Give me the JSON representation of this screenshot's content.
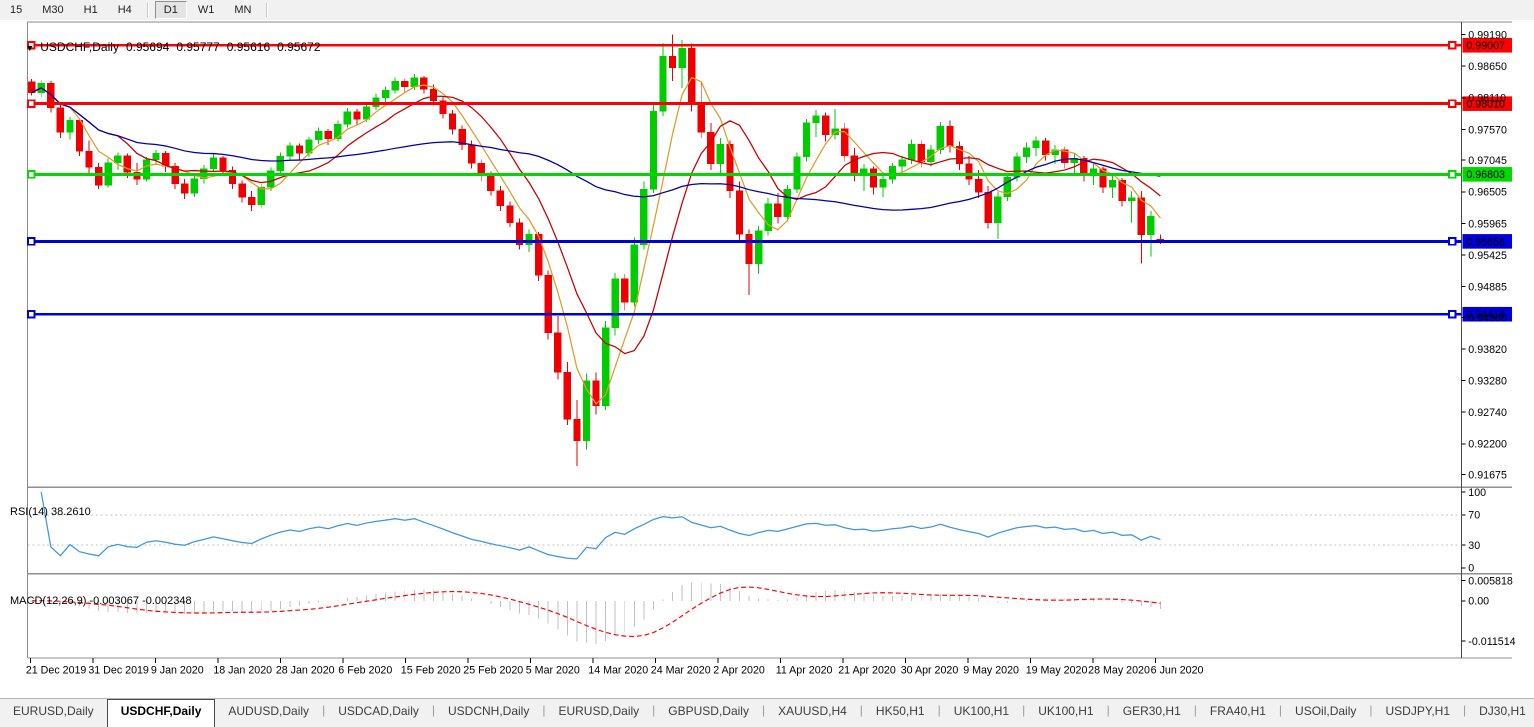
{
  "toolbar": {
    "timeframes": [
      "15",
      "M30",
      "H1",
      "H4",
      "D1",
      "W1",
      "MN"
    ],
    "active": "D1"
  },
  "chart_header": {
    "symbol": "USDCHF,Daily",
    "open": "0.95694",
    "high": "0.95777",
    "low": "0.95616",
    "close": "0.95672"
  },
  "indicator_labels": {
    "rsi": "RSI(14) 38.2610",
    "macd": "MACD(12,26,9) -0.003067 -0.002348"
  },
  "chart_data": {
    "type": "candlestick",
    "symbol": "USDCHF",
    "timeframe": "Daily",
    "current_ohlc": {
      "open": 0.95694,
      "high": 0.95777,
      "low": 0.95616,
      "close": 0.95672
    },
    "y_axis_range": [
      0.91675,
      0.9919
    ],
    "grid": false,
    "x_labels": [
      "21 Dec 2019",
      "31 Dec 2019",
      "9 Jan 2020",
      "18 Jan 2020",
      "28 Jan 2020",
      "6 Feb 2020",
      "15 Feb 2020",
      "25 Feb 2020",
      "5 Mar 2020",
      "14 Mar 2020",
      "24 Mar 2020",
      "2 Apr 2020",
      "11 Apr 2020",
      "21 Apr 2020",
      "30 Apr 2020",
      "9 May 2020",
      "19 May 2020",
      "28 May 2020",
      "6 Jun 2020"
    ],
    "y_ticks": [
      "0.99190",
      "0.98650",
      "0.98110",
      "0.97570",
      "0.97045",
      "0.96505",
      "0.95965",
      "0.95425",
      "0.94885",
      "0.94360",
      "0.93820",
      "0.93280",
      "0.92740",
      "0.92200",
      "0.91675"
    ],
    "h_lines": [
      {
        "value": 0.99007,
        "label": "0.99007",
        "color": "#ff0000"
      },
      {
        "value": 0.9801,
        "label": "0.98010",
        "color": "#ff0000"
      },
      {
        "value": 0.96803,
        "label": "0.96803",
        "color": "#00d800"
      },
      {
        "value": 0.95658,
        "label": "0.95658",
        "color": "#0000dc"
      },
      {
        "value": 0.94414,
        "label": "0.94414",
        "color": "#0000dc"
      }
    ],
    "moving_averages": [
      {
        "period": 5,
        "color": "#e29b2c"
      },
      {
        "period": 10,
        "color": "#c80000"
      },
      {
        "period": 45,
        "color": "#0000aa"
      }
    ],
    "rsi": {
      "period": 14,
      "current": 38.261,
      "levels": [
        70,
        30
      ],
      "color": "#3e96e0",
      "scale_ticks": [
        {
          "v": 100,
          "t": "100"
        },
        {
          "v": 70,
          "t": "70"
        },
        {
          "v": 30,
          "t": "30"
        },
        {
          "v": 0,
          "t": "0"
        }
      ]
    },
    "macd": {
      "fast": 12,
      "slow": 26,
      "signal": 9,
      "current_macd": -0.003067,
      "current_signal": -0.002348,
      "hist_color": "#c2c2c2",
      "signal_color": "#ff0000",
      "scale_ticks": [
        {
          "v": 0.005818,
          "t": "0.005818"
        },
        {
          "v": 0,
          "t": "0.00"
        },
        {
          "v": -0.011514,
          "t": "-0.011514"
        }
      ]
    },
    "colors": {
      "bull": "#00cc00",
      "bear": "#ee0000",
      "background": "#ffffff"
    },
    "candles": [
      [
        0.9838,
        0.9843,
        0.9815,
        0.982
      ],
      [
        0.982,
        0.9841,
        0.9812,
        0.9836
      ],
      [
        0.9836,
        0.984,
        0.9786,
        0.9794
      ],
      [
        0.9794,
        0.98,
        0.9742,
        0.9752
      ],
      [
        0.9752,
        0.9778,
        0.974,
        0.9773
      ],
      [
        0.9773,
        0.9776,
        0.9712,
        0.972
      ],
      [
        0.972,
        0.9738,
        0.968,
        0.9692
      ],
      [
        0.9692,
        0.97,
        0.9655,
        0.9662
      ],
      [
        0.9662,
        0.9707,
        0.9658,
        0.97
      ],
      [
        0.97,
        0.9718,
        0.9688,
        0.9712
      ],
      [
        0.9712,
        0.9716,
        0.9674,
        0.9684
      ],
      [
        0.9684,
        0.97,
        0.9662,
        0.9672
      ],
      [
        0.9672,
        0.971,
        0.9668,
        0.9705
      ],
      [
        0.9705,
        0.9722,
        0.9696,
        0.9716
      ],
      [
        0.9716,
        0.972,
        0.9684,
        0.9694
      ],
      [
        0.9694,
        0.97,
        0.9655,
        0.9664
      ],
      [
        0.9664,
        0.9672,
        0.9638,
        0.9648
      ],
      [
        0.9648,
        0.968,
        0.9642,
        0.9673
      ],
      [
        0.9673,
        0.9696,
        0.9665,
        0.969
      ],
      [
        0.969,
        0.9715,
        0.9684,
        0.9709
      ],
      [
        0.9709,
        0.9712,
        0.9678,
        0.9687
      ],
      [
        0.9687,
        0.9694,
        0.9655,
        0.9664
      ],
      [
        0.9664,
        0.967,
        0.9632,
        0.9641
      ],
      [
        0.9641,
        0.9652,
        0.9618,
        0.9628
      ],
      [
        0.9628,
        0.9664,
        0.9622,
        0.9658
      ],
      [
        0.9658,
        0.9692,
        0.9652,
        0.9686
      ],
      [
        0.9686,
        0.9718,
        0.968,
        0.9711
      ],
      [
        0.9711,
        0.9735,
        0.9704,
        0.9729
      ],
      [
        0.9729,
        0.9733,
        0.9706,
        0.9716
      ],
      [
        0.9716,
        0.9744,
        0.971,
        0.9739
      ],
      [
        0.9739,
        0.976,
        0.9732,
        0.9754
      ],
      [
        0.9754,
        0.9758,
        0.973,
        0.9741
      ],
      [
        0.9741,
        0.9772,
        0.9736,
        0.9766
      ],
      [
        0.9766,
        0.9794,
        0.976,
        0.9787
      ],
      [
        0.9787,
        0.9792,
        0.9764,
        0.9774
      ],
      [
        0.9774,
        0.9802,
        0.977,
        0.9796
      ],
      [
        0.9796,
        0.9818,
        0.979,
        0.9811
      ],
      [
        0.9811,
        0.983,
        0.9804,
        0.9824
      ],
      [
        0.9824,
        0.9846,
        0.9818,
        0.9839
      ],
      [
        0.9839,
        0.9844,
        0.982,
        0.983
      ],
      [
        0.983,
        0.9852,
        0.9824,
        0.9845
      ],
      [
        0.9845,
        0.9848,
        0.9818,
        0.9826
      ],
      [
        0.9826,
        0.9834,
        0.9798,
        0.9806
      ],
      [
        0.9806,
        0.9812,
        0.9776,
        0.9784
      ],
      [
        0.9784,
        0.979,
        0.9748,
        0.9757
      ],
      [
        0.9757,
        0.9764,
        0.9722,
        0.9731
      ],
      [
        0.9731,
        0.9738,
        0.969,
        0.9699
      ],
      [
        0.9699,
        0.9706,
        0.9668,
        0.9678
      ],
      [
        0.9678,
        0.9685,
        0.9644,
        0.9652
      ],
      [
        0.9652,
        0.966,
        0.9618,
        0.9627
      ],
      [
        0.9627,
        0.9634,
        0.959,
        0.9598
      ],
      [
        0.9598,
        0.9605,
        0.9552,
        0.956
      ],
      [
        0.956,
        0.9586,
        0.9548,
        0.9578
      ],
      [
        0.9578,
        0.9582,
        0.9498,
        0.9508
      ],
      [
        0.9508,
        0.9516,
        0.9398,
        0.941
      ],
      [
        0.941,
        0.9438,
        0.933,
        0.9342
      ],
      [
        0.9342,
        0.936,
        0.9252,
        0.9262
      ],
      [
        0.9262,
        0.9295,
        0.9182,
        0.9225
      ],
      [
        0.9225,
        0.934,
        0.921,
        0.9328
      ],
      [
        0.9328,
        0.9342,
        0.927,
        0.9285
      ],
      [
        0.9285,
        0.943,
        0.9278,
        0.9418
      ],
      [
        0.9418,
        0.9512,
        0.9405,
        0.9502
      ],
      [
        0.9502,
        0.951,
        0.9448,
        0.9462
      ],
      [
        0.9462,
        0.9572,
        0.9455,
        0.956
      ],
      [
        0.956,
        0.9668,
        0.9552,
        0.9655
      ],
      [
        0.9655,
        0.98,
        0.9648,
        0.9788
      ],
      [
        0.9788,
        0.9905,
        0.978,
        0.9882
      ],
      [
        0.9882,
        0.9919,
        0.984,
        0.9862
      ],
      [
        0.9862,
        0.991,
        0.9828,
        0.9896
      ],
      [
        0.9896,
        0.9904,
        0.9788,
        0.98
      ],
      [
        0.98,
        0.9838,
        0.9742,
        0.9752
      ],
      [
        0.9752,
        0.9768,
        0.9688,
        0.9698
      ],
      [
        0.9698,
        0.9742,
        0.9682,
        0.9732
      ],
      [
        0.9732,
        0.9738,
        0.964,
        0.9652
      ],
      [
        0.9652,
        0.9668,
        0.9566,
        0.9578
      ],
      [
        0.9578,
        0.9586,
        0.9474,
        0.9528
      ],
      [
        0.9528,
        0.9592,
        0.951,
        0.9584
      ],
      [
        0.9584,
        0.964,
        0.9576,
        0.963
      ],
      [
        0.963,
        0.9648,
        0.9596,
        0.9608
      ],
      [
        0.9608,
        0.9662,
        0.96,
        0.9655
      ],
      [
        0.9655,
        0.9718,
        0.9648,
        0.971
      ],
      [
        0.971,
        0.9775,
        0.9702,
        0.9768
      ],
      [
        0.9768,
        0.979,
        0.9744,
        0.978
      ],
      [
        0.978,
        0.9786,
        0.9736,
        0.9748
      ],
      [
        0.9748,
        0.9792,
        0.974,
        0.9758
      ],
      [
        0.9758,
        0.9768,
        0.9702,
        0.9712
      ],
      [
        0.9712,
        0.9725,
        0.9668,
        0.968
      ],
      [
        0.968,
        0.9698,
        0.9652,
        0.969
      ],
      [
        0.969,
        0.9694,
        0.9646,
        0.9658
      ],
      [
        0.9658,
        0.968,
        0.9642,
        0.9672
      ],
      [
        0.9672,
        0.97,
        0.9665,
        0.9694
      ],
      [
        0.9694,
        0.9712,
        0.968,
        0.9705
      ],
      [
        0.9705,
        0.974,
        0.9698,
        0.9732
      ],
      [
        0.9732,
        0.9738,
        0.9692,
        0.9702
      ],
      [
        0.9702,
        0.973,
        0.9694,
        0.9722
      ],
      [
        0.9722,
        0.977,
        0.9715,
        0.9762
      ],
      [
        0.9762,
        0.9772,
        0.9718,
        0.9728
      ],
      [
        0.9728,
        0.9736,
        0.9688,
        0.9698
      ],
      [
        0.9698,
        0.9712,
        0.9662,
        0.9672
      ],
      [
        0.9672,
        0.9688,
        0.964,
        0.965
      ],
      [
        0.965,
        0.966,
        0.9588,
        0.9598
      ],
      [
        0.9598,
        0.965,
        0.957,
        0.9642
      ],
      [
        0.9642,
        0.9682,
        0.9635,
        0.9675
      ],
      [
        0.9675,
        0.9718,
        0.9668,
        0.971
      ],
      [
        0.971,
        0.9735,
        0.97,
        0.9726
      ],
      [
        0.9726,
        0.9745,
        0.9712,
        0.9738
      ],
      [
        0.9738,
        0.9742,
        0.9704,
        0.9714
      ],
      [
        0.9714,
        0.973,
        0.9698,
        0.9722
      ],
      [
        0.9722,
        0.9728,
        0.969,
        0.97
      ],
      [
        0.97,
        0.9716,
        0.9682,
        0.9708
      ],
      [
        0.9708,
        0.9712,
        0.9668,
        0.9678
      ],
      [
        0.9678,
        0.9698,
        0.9662,
        0.969
      ],
      [
        0.969,
        0.9694,
        0.9648,
        0.9658
      ],
      [
        0.9658,
        0.968,
        0.964,
        0.967
      ],
      [
        0.967,
        0.9674,
        0.9625,
        0.9635
      ],
      [
        0.9635,
        0.9651,
        0.9598,
        0.964
      ],
      [
        0.964,
        0.9652,
        0.9528,
        0.9577
      ],
      [
        0.9577,
        0.9618,
        0.954,
        0.9609
      ],
      [
        0.95694,
        0.95777,
        0.95616,
        0.95672
      ]
    ]
  },
  "tabs": {
    "items": [
      {
        "label": "EURUSD,Daily",
        "active": false
      },
      {
        "label": "USDCHF,Daily",
        "active": true
      },
      {
        "label": "AUDUSD,Daily",
        "active": false
      },
      {
        "label": "USDCAD,Daily",
        "active": false
      },
      {
        "label": "USDCNH,Daily",
        "active": false
      },
      {
        "label": "EURUSD,Daily",
        "active": false
      },
      {
        "label": "GBPUSD,Daily",
        "active": false
      },
      {
        "label": "XAUUSD,H4",
        "active": false
      },
      {
        "label": "HK50,H1",
        "active": false
      },
      {
        "label": "UK100,H1",
        "active": false
      },
      {
        "label": "UK100,H1",
        "active": false
      },
      {
        "label": "GER30,H1",
        "active": false
      },
      {
        "label": "FRA40,H1",
        "active": false
      },
      {
        "label": "USOil,Daily",
        "active": false
      },
      {
        "label": "USDJPY,H1",
        "active": false
      },
      {
        "label": "DJ30,H1",
        "active": false
      }
    ],
    "scroll_left": "◂",
    "scroll_right": "▸"
  }
}
